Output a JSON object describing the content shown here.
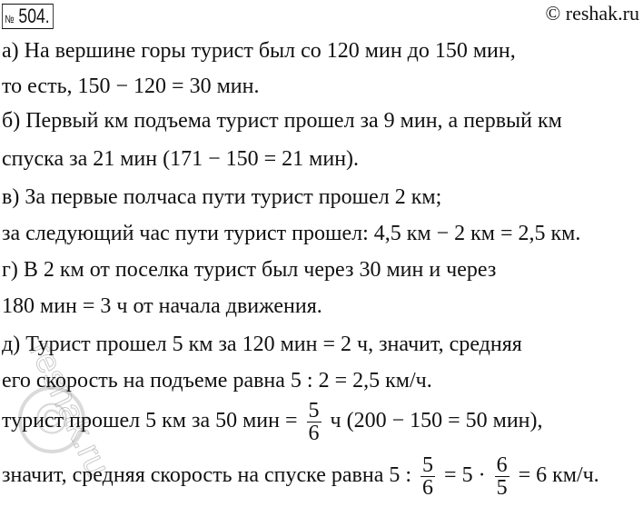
{
  "header": {
    "number_sign": "№",
    "number": "504.",
    "site": "© reshak.ru"
  },
  "watermark": {
    "text": "reshak.ru",
    "symbol": "©"
  },
  "lines": [
    "а) На вершине горы турист был со 120 мин до 150 мин,",
    "то есть, 150 − 120 = 30 мин.",
    "б) Первый км подъема турист прошел за 9 мин, а первый км",
    "спуска за 21 мин (171 − 150 = 21 мин).",
    "в) За первые полчаса пути турист прошел 2 км;",
    "за следующий час пути турист прошел:  4,5 км − 2 км = 2,5 км.",
    "г) В 2 км от поселка турист был через 30 мин и через",
    "180 мин = 3 ч от начала движения.",
    "д) Турист прошел 5 км за 120 мин = 2 ч, значит, средняя",
    "его скорость на подъеме равна 5 : 2 = 2,5  км/ч."
  ],
  "line11": {
    "before": "турист прошел 5 км за 50 мин =",
    "num": "5",
    "den": "6",
    "after": "ч (200 − 150 = 50 мин),"
  },
  "line12": {
    "before": "значит, средняя скорость на спуске равна  5 :",
    "f1num": "5",
    "f1den": "6",
    "mid": "= 5 ·",
    "f2num": "6",
    "f2den": "5",
    "after": "= 6  км/ч."
  }
}
